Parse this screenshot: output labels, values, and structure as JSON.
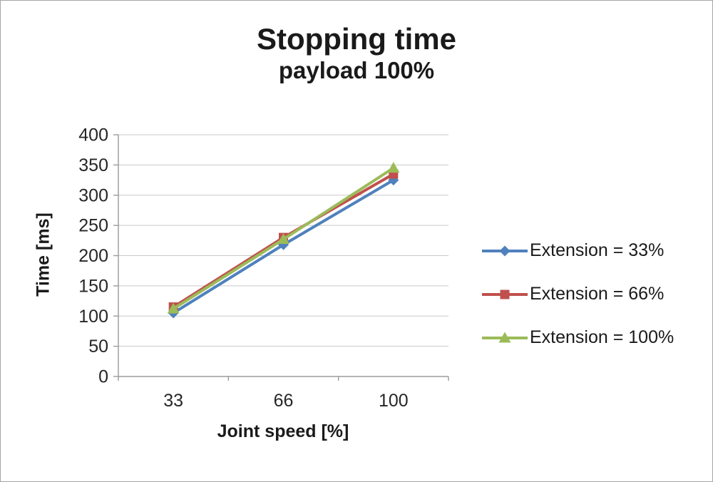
{
  "chart_data": {
    "type": "line",
    "title": "Stopping time",
    "subtitle": "payload 100%",
    "xlabel": "Joint speed [%]",
    "ylabel": "Time [ms]",
    "categories": [
      "33",
      "66",
      "100"
    ],
    "ylim": [
      0,
      400
    ],
    "ytick_step": 50,
    "grid": true,
    "legend_position": "right",
    "series": [
      {
        "name": "Extension = 33%",
        "color": "#4F81BD",
        "marker": "diamond",
        "values": [
          105,
          218,
          325
        ]
      },
      {
        "name": "Extension = 66%",
        "color": "#C0504D",
        "marker": "square",
        "values": [
          115,
          230,
          335
        ]
      },
      {
        "name": "Extension = 100%",
        "color": "#9BBB59",
        "marker": "triangle",
        "values": [
          112,
          227,
          345
        ]
      }
    ]
  }
}
